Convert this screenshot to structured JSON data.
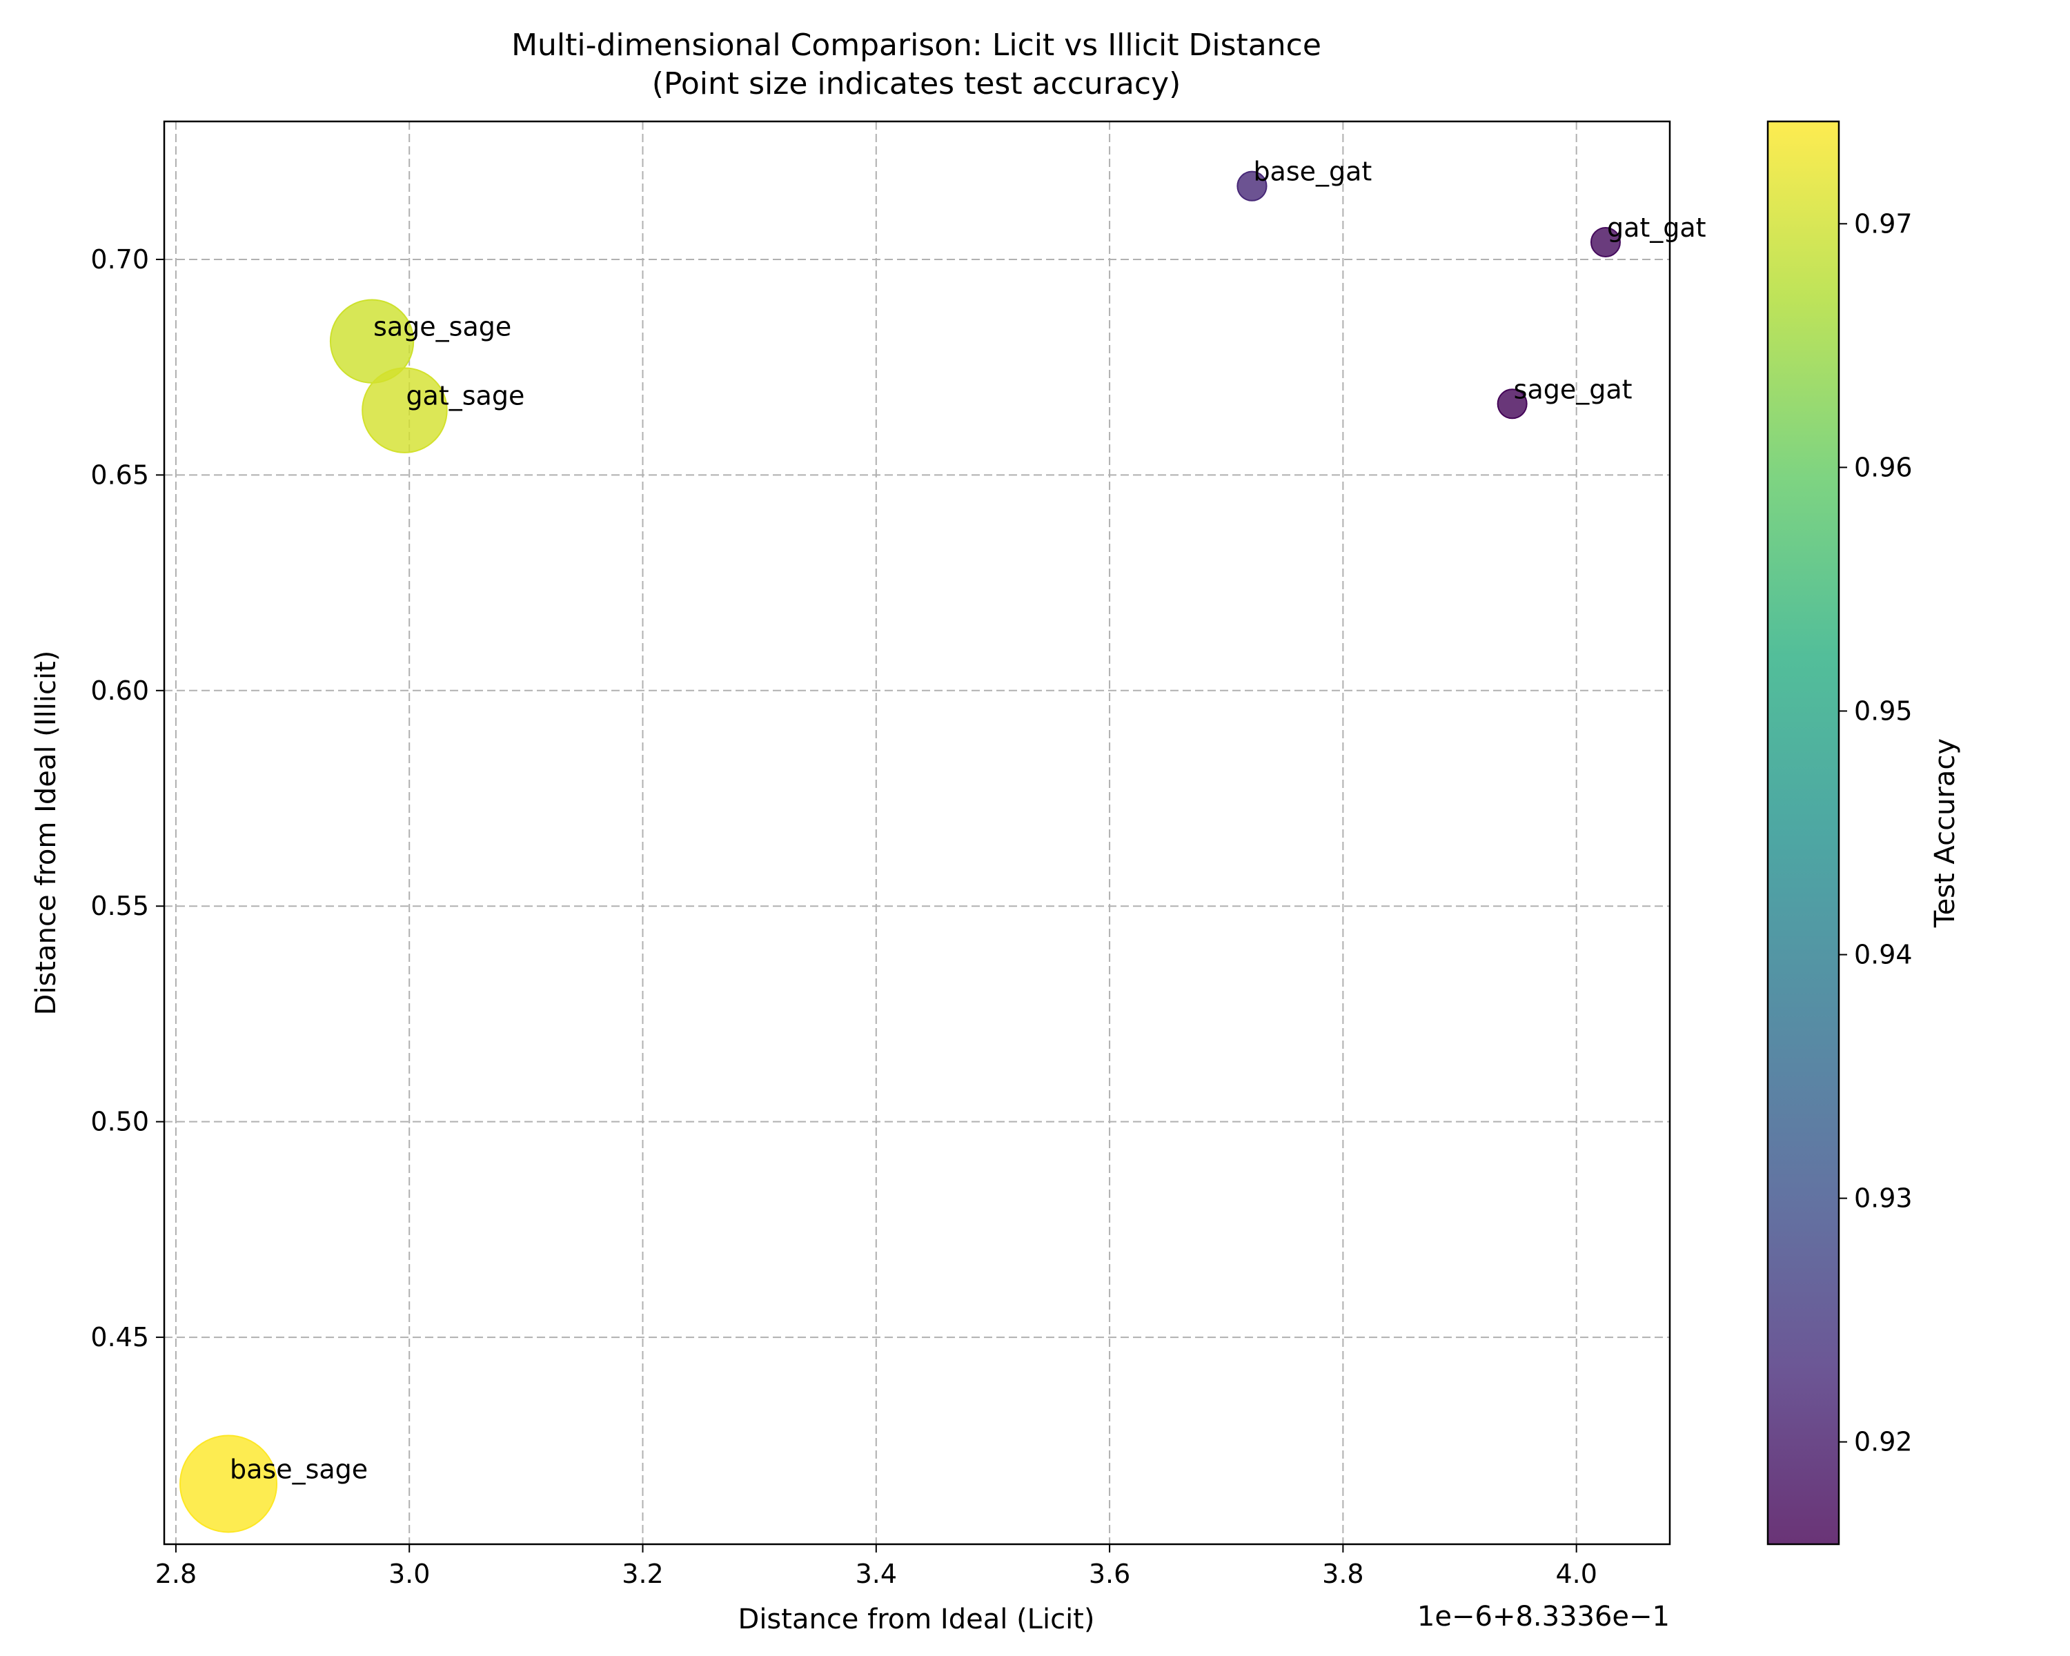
{
  "chart_data": {
    "type": "scatter",
    "title": "Multi-dimensional Comparison: Licit vs Illicit Distance",
    "subtitle": "(Point size indicates test accuracy)",
    "xlabel": "Distance from Ideal (Licit)",
    "ylabel": "Distance from Ideal (Illicit)",
    "x_offset_label": "1e−6+8.3336e−1",
    "x_ticks": [
      "2.8",
      "3.0",
      "3.2",
      "3.4",
      "3.6",
      "3.8",
      "4.0"
    ],
    "y_ticks": [
      "0.45",
      "0.50",
      "0.55",
      "0.60",
      "0.65",
      "0.70"
    ],
    "xlim": [
      2.79,
      4.08
    ],
    "ylim": [
      0.402,
      0.732
    ],
    "grid": true,
    "colorbar": {
      "label": "Test Accuracy",
      "min": 0.9158,
      "max": 0.9742,
      "ticks": [
        "0.92",
        "0.93",
        "0.94",
        "0.95",
        "0.96",
        "0.97"
      ],
      "colormap": "viridis"
    },
    "points": [
      {
        "label": "base_gat",
        "x": 3.722,
        "y": 0.717,
        "accuracy": 0.9225
      },
      {
        "label": "gat_gat",
        "x": 4.025,
        "y": 0.704,
        "accuracy": 0.9175
      },
      {
        "label": "sage_gat",
        "x": 3.945,
        "y": 0.6665,
        "accuracy": 0.9165
      },
      {
        "label": "sage_sage",
        "x": 2.968,
        "y": 0.681,
        "accuracy": 0.97
      },
      {
        "label": "gat_sage",
        "x": 2.996,
        "y": 0.665,
        "accuracy": 0.9705
      },
      {
        "label": "base_sage",
        "x": 2.845,
        "y": 0.416,
        "accuracy": 0.9742
      }
    ]
  }
}
